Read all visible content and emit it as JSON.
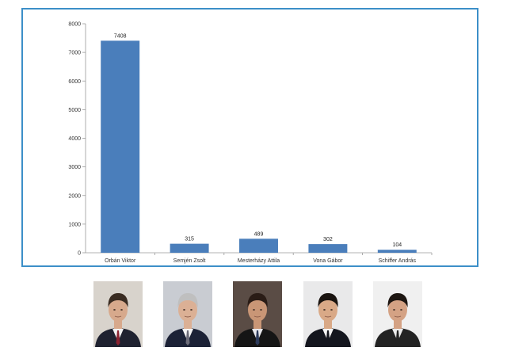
{
  "chart_data": {
    "type": "bar",
    "categories": [
      "Orbán Viktor",
      "Semjén Zsolt",
      "Mesterházy Attila",
      "Vona Gábor",
      "Schiffer András"
    ],
    "values": [
      7408,
      315,
      489,
      302,
      104
    ],
    "data_labels": [
      "7408",
      "315",
      "489",
      "302",
      "104"
    ],
    "y_ticks": [
      "0",
      "1000",
      "2000",
      "3000",
      "4000",
      "5000",
      "6000",
      "7000",
      "8000"
    ],
    "ylim": [
      0,
      8000
    ],
    "grid": false,
    "bar_color": "#4a7ebb",
    "frame_color": "#3c8fc8",
    "title": "",
    "xlabel": "",
    "ylabel": ""
  },
  "portraits": [
    {
      "name": "orban-viktor-portrait",
      "bg": "#d8d3cc",
      "hair": "#3a2c22",
      "skin": "#d7a98c",
      "suit": "#1f2230",
      "shirt": "#f2f2f2",
      "tie": "#8a2230"
    },
    {
      "name": "semjen-zsolt-portrait",
      "bg": "#c9ccd2",
      "hair": "#bfbfbf",
      "skin": "#dbb095",
      "suit": "#1c2236",
      "shirt": "#f4f4f4",
      "tie": "#6b6b78"
    },
    {
      "name": "mesterhazy-attila-portrait",
      "bg": "#5a4c45",
      "hair": "#2a1c16",
      "skin": "#c99676",
      "suit": "#151515",
      "shirt": "#e8e8ec",
      "tie": "#2c3a5a"
    },
    {
      "name": "vona-gabor-portrait",
      "bg": "#e9e9ea",
      "hair": "#1a1410",
      "skin": "#d9a987",
      "suit": "#14161e",
      "shirt": "#f5f5f5",
      "tie": "#14161e"
    },
    {
      "name": "schiffer-andras-portrait",
      "bg": "#f0f0f0",
      "hair": "#1d1612",
      "skin": "#d4a284",
      "suit": "#232323",
      "shirt": "#ececec",
      "tie": "#232323"
    }
  ]
}
